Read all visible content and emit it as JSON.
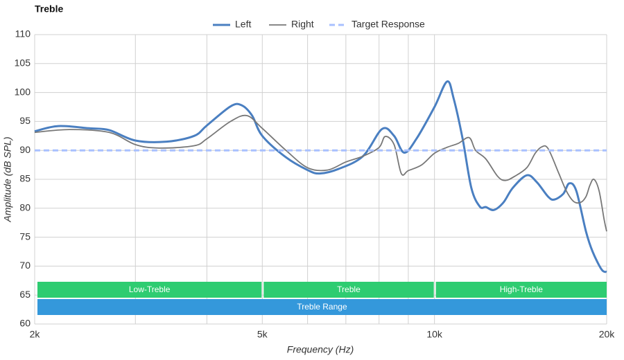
{
  "chart_data": {
    "type": "line",
    "title": "Treble",
    "xlabel": "Frequency (Hz)",
    "ylabel": "Amplitude (dB SPL)",
    "xscale": "log",
    "xlim": [
      2000,
      20000
    ],
    "xticks": [
      {
        "value": 2000,
        "label": "2k"
      },
      {
        "value": 5000,
        "label": "5k"
      },
      {
        "value": 10000,
        "label": "10k"
      },
      {
        "value": 20000,
        "label": "20k"
      }
    ],
    "xminor": [
      3000,
      4000,
      6000,
      7000,
      8000,
      9000
    ],
    "ylim": [
      60,
      110
    ],
    "yticks": [
      60,
      65,
      70,
      75,
      80,
      85,
      90,
      95,
      100,
      105,
      110
    ],
    "grid": true,
    "legend": "top",
    "series": [
      {
        "name": "Left",
        "color": "#4a7fc1",
        "width": 3,
        "dash": false,
        "x": [
          2000,
          2200,
          2500,
          2700,
          3000,
          3400,
          3800,
          4000,
          4400,
          4600,
          4800,
          5000,
          5500,
          6000,
          6300,
          6800,
          7500,
          8100,
          8500,
          8850,
          9300,
          10000,
          10520,
          10800,
          11200,
          11600,
          12000,
          12300,
          12700,
          13200,
          13700,
          14500,
          15100,
          15800,
          16200,
          16800,
          17200,
          17700,
          18400,
          18900,
          19600,
          20000
        ],
        "values": [
          93.3,
          94.2,
          93.8,
          93.5,
          91.7,
          91.5,
          92.5,
          94.3,
          97.6,
          97.8,
          96,
          92.5,
          88.8,
          86.6,
          86,
          86.8,
          89,
          93.7,
          92.5,
          89.6,
          92,
          97.5,
          101.9,
          99,
          92,
          83.5,
          80.3,
          80.2,
          79.7,
          81,
          83.5,
          85.7,
          84.5,
          82,
          81.5,
          82.5,
          84.3,
          83,
          76,
          72.5,
          69.4,
          69
        ]
      },
      {
        "name": "Right",
        "color": "#777777",
        "width": 1.8,
        "dash": false,
        "x": [
          2000,
          2300,
          2700,
          3000,
          3300,
          3800,
          4000,
          4400,
          4700,
          5000,
          5500,
          6000,
          6500,
          7000,
          7500,
          8000,
          8200,
          8500,
          8750,
          9000,
          9500,
          10000,
          10500,
          11000,
          11500,
          11800,
          12300,
          12900,
          13300,
          13800,
          14500,
          15000,
          15400,
          15800,
          16500,
          17000,
          17500,
          18000,
          18400,
          18700,
          19000,
          19400,
          19800,
          20000
        ],
        "values": [
          93.1,
          93.6,
          93.1,
          91,
          90.4,
          90.8,
          92,
          95,
          96,
          93.8,
          90,
          87,
          86.6,
          88,
          89,
          90.5,
          92.4,
          91,
          86,
          86.5,
          87.5,
          89.5,
          90.5,
          91.2,
          92.2,
          90,
          88.5,
          85.5,
          84.8,
          85.5,
          87,
          89.5,
          90.6,
          90.3,
          86,
          83,
          81.2,
          81,
          82,
          84,
          85,
          83,
          78,
          76
        ]
      },
      {
        "name": "Target Response",
        "color": "#a8c0ff",
        "width": 3,
        "dash": true,
        "x": [
          2000,
          20000
        ],
        "values": [
          90,
          90
        ]
      }
    ],
    "bands": [
      {
        "label": "Low-Treble",
        "from": 2000,
        "to": 5000,
        "color": "#2ecc71",
        "row": 0
      },
      {
        "label": "Treble",
        "from": 5000,
        "to": 10000,
        "color": "#2ecc71",
        "row": 0
      },
      {
        "label": "High-Treble",
        "from": 10000,
        "to": 20000,
        "color": "#2ecc71",
        "row": 0
      },
      {
        "label": "Treble Range",
        "from": 2000,
        "to": 20000,
        "color": "#3498db",
        "row": 1
      }
    ]
  }
}
